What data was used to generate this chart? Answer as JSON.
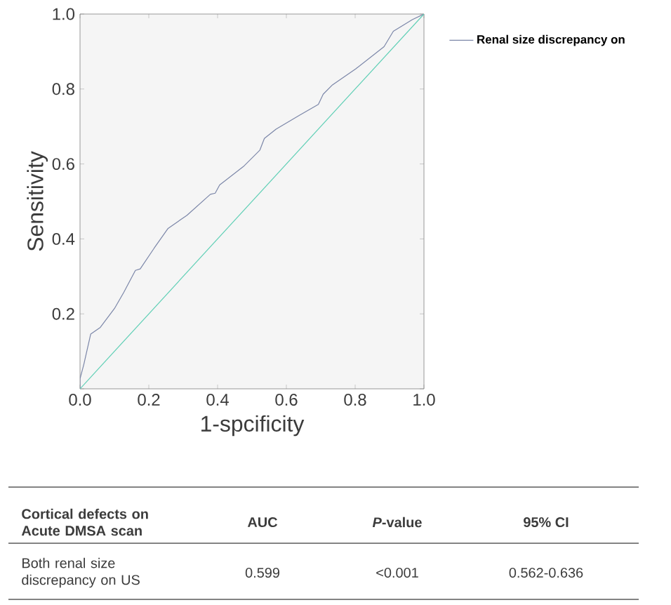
{
  "chart_data": {
    "type": "line",
    "xlabel": "1-spcificity",
    "ylabel": "Sensitivity",
    "legend": "right",
    "grid": false,
    "xlim": [
      0,
      1
    ],
    "ylim": [
      0,
      1
    ],
    "xticks": [
      {
        "value": 0,
        "label": "0.0"
      },
      0.2,
      0.4,
      0.6,
      0.8,
      {
        "value": 1,
        "label": "1.0"
      }
    ],
    "yticks": [
      {
        "value": 0,
        "label": null
      },
      0.2,
      0.4,
      0.6,
      0.8,
      {
        "value": 1,
        "label": "1.0"
      }
    ],
    "series": [
      {
        "name": "Renal size discrepancy on",
        "color": "#7b86a8",
        "x": [
          0,
          0,
          0.011,
          0.031,
          0.059,
          0.1,
          0.127,
          0.161,
          0.175,
          0.216,
          0.256,
          0.311,
          0.379,
          0.393,
          0.406,
          0.475,
          0.523,
          0.536,
          0.57,
          0.638,
          0.693,
          0.707,
          0.734,
          0.802,
          0.884,
          0.911,
          0.932,
          0.966,
          1
        ],
        "values": [
          0,
          0.027,
          0.065,
          0.146,
          0.164,
          0.214,
          0.257,
          0.316,
          0.32,
          0.376,
          0.428,
          0.463,
          0.519,
          0.522,
          0.544,
          0.593,
          0.637,
          0.668,
          0.693,
          0.73,
          0.759,
          0.786,
          0.811,
          0.854,
          0.913,
          0.954,
          0.966,
          0.985,
          1
        ]
      },
      {
        "color": "#5ecfb5",
        "x": [
          0,
          1
        ],
        "values": [
          0,
          1
        ]
      }
    ],
    "annotations": [
      "Cortical defects on\nAcute DMSA scan",
      "AUC",
      "*P*-value",
      "95% CI",
      "Both renal size\ndiscrepancy on US",
      "0.599",
      "<0.001",
      "0.562-0.636"
    ]
  }
}
